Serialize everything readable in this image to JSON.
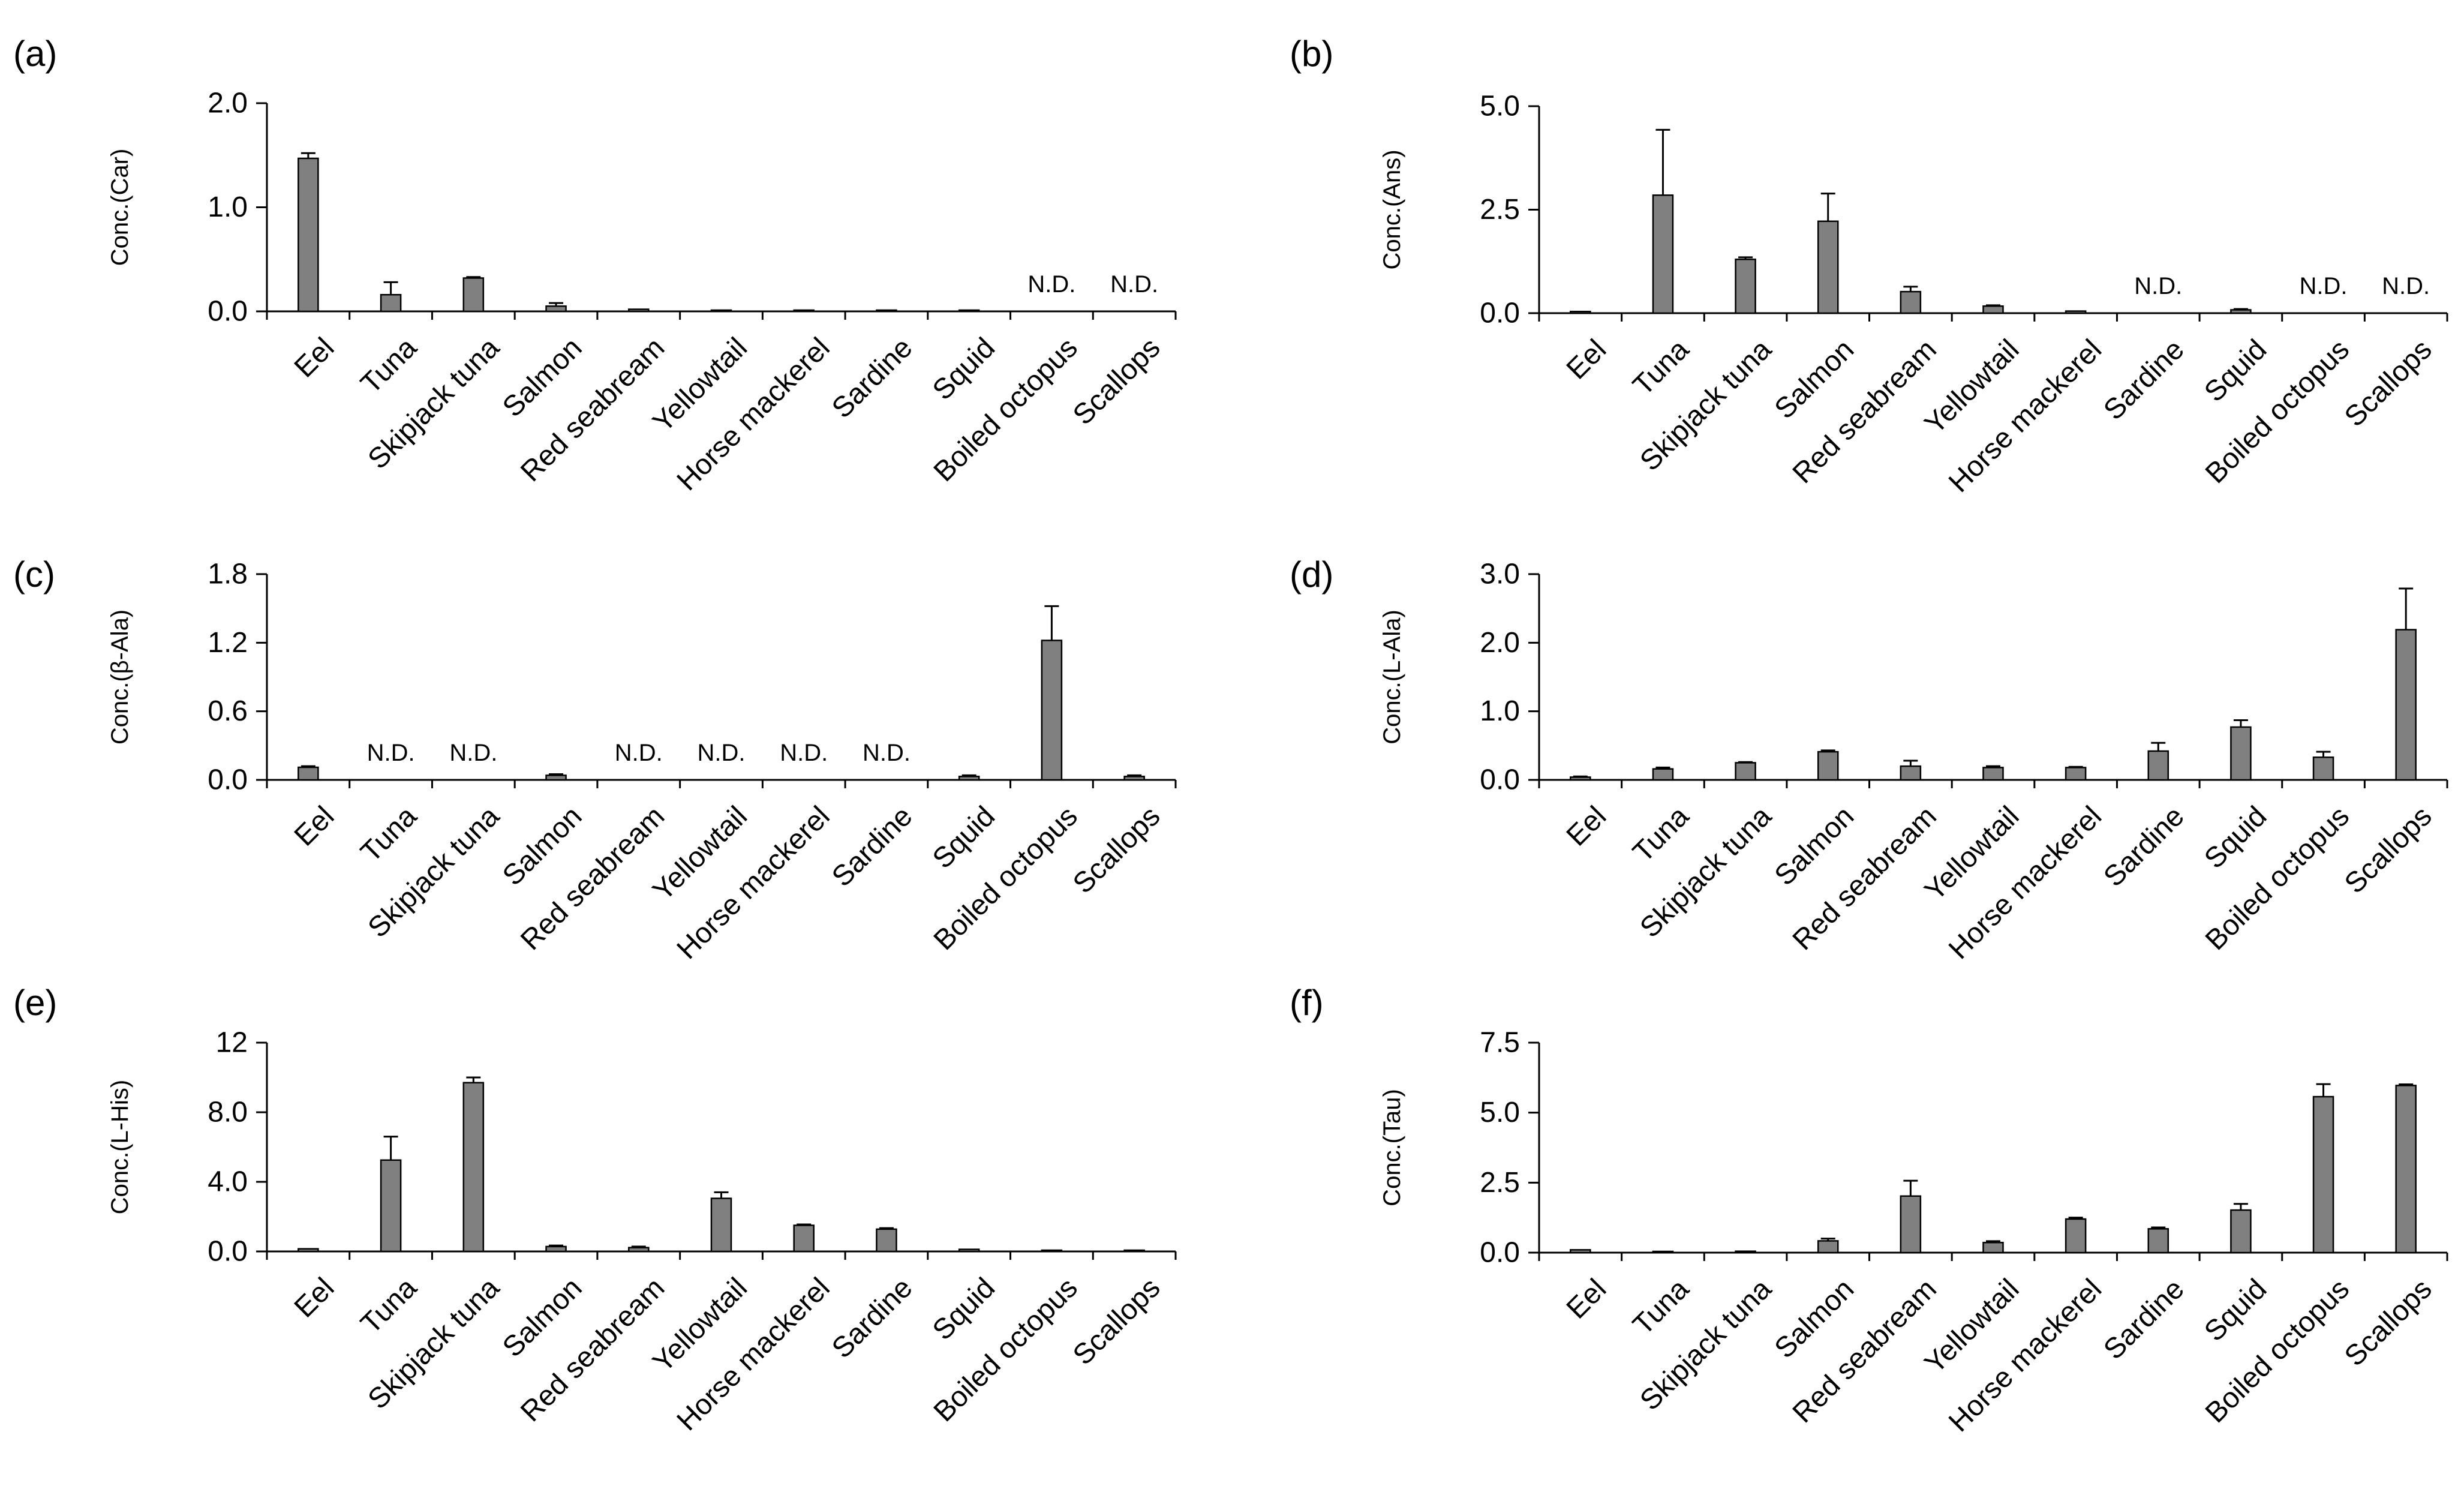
{
  "figure": {
    "categories": [
      "Eel",
      "Tuna",
      "Skipjack tuna",
      "Salmon",
      "Red seabream",
      "Yellowtail",
      "Horse mackerel",
      "Sardine",
      "Squid",
      "Boiled octopus",
      "Scallops"
    ],
    "nd_label": "N.D.",
    "colors": {
      "bar": "#808080",
      "axis": "#000000",
      "text": "#000000"
    }
  },
  "chart_data": [
    {
      "panel": "(a)",
      "type": "bar",
      "ylabel": "Conc.(Car)",
      "ylim": [
        0,
        2.0
      ],
      "yticks": [
        "0.0",
        "1.0",
        "2.0"
      ],
      "values": [
        1.47,
        0.16,
        0.32,
        0.05,
        0.02,
        0.01,
        0.01,
        0.01,
        0.01,
        null,
        null
      ],
      "errors": [
        0.05,
        0.12,
        0.01,
        0.03,
        0.005,
        0.002,
        0.002,
        0.002,
        0.002,
        null,
        null
      ]
    },
    {
      "panel": "(b)",
      "type": "bar",
      "ylabel": "Conc.(Ans)",
      "ylim": [
        0,
        5.0
      ],
      "yticks": [
        "0.0",
        "2.5",
        "5.0"
      ],
      "values": [
        0.04,
        2.85,
        1.3,
        2.22,
        0.52,
        0.17,
        0.05,
        null,
        0.08,
        null,
        null
      ],
      "errors": [
        0.01,
        1.58,
        0.05,
        0.67,
        0.12,
        0.02,
        0.01,
        null,
        0.02,
        null,
        null
      ]
    },
    {
      "panel": "(c)",
      "type": "bar",
      "ylabel": "Conc.(β-Ala)",
      "ylim": [
        0,
        1.8
      ],
      "yticks": [
        "0.0",
        "0.6",
        "1.2",
        "1.8"
      ],
      "values": [
        0.11,
        null,
        null,
        0.04,
        null,
        null,
        null,
        null,
        0.03,
        1.22,
        0.03
      ],
      "errors": [
        0.01,
        null,
        null,
        0.01,
        null,
        null,
        null,
        null,
        0.01,
        0.3,
        0.01
      ]
    },
    {
      "panel": "(d)",
      "type": "bar",
      "ylabel": "Conc.(L-Ala)",
      "ylim": [
        0,
        3.0
      ],
      "yticks": [
        "0.0",
        "1.0",
        "2.0",
        "3.0"
      ],
      "values": [
        0.04,
        0.16,
        0.25,
        0.41,
        0.2,
        0.18,
        0.18,
        0.42,
        0.77,
        0.33,
        2.19
      ],
      "errors": [
        0.01,
        0.02,
        0.01,
        0.02,
        0.08,
        0.02,
        0.01,
        0.12,
        0.1,
        0.08,
        0.6
      ]
    },
    {
      "panel": "(e)",
      "type": "bar",
      "ylabel": "Conc.(L-His)",
      "ylim": [
        0,
        12
      ],
      "yticks": [
        "0.0",
        "4.0",
        "8.0",
        "12"
      ],
      "values": [
        0.15,
        5.25,
        9.7,
        0.28,
        0.22,
        3.05,
        1.5,
        1.28,
        0.12,
        0.05,
        0.05
      ],
      "errors": [
        0.03,
        1.35,
        0.3,
        0.06,
        0.06,
        0.35,
        0.05,
        0.06,
        0.02,
        0.01,
        0.01
      ]
    },
    {
      "panel": "(f)",
      "type": "bar",
      "ylabel": "Conc.(Tau)",
      "ylim": [
        0,
        7.5
      ],
      "yticks": [
        "0.0",
        "2.5",
        "5.0",
        "7.5"
      ],
      "values": [
        0.1,
        0.04,
        0.05,
        0.42,
        2.02,
        0.36,
        1.2,
        0.85,
        1.52,
        5.57,
        5.97
      ],
      "errors": [
        0.02,
        0.01,
        0.01,
        0.08,
        0.55,
        0.05,
        0.05,
        0.05,
        0.22,
        0.45,
        0.04
      ]
    }
  ]
}
